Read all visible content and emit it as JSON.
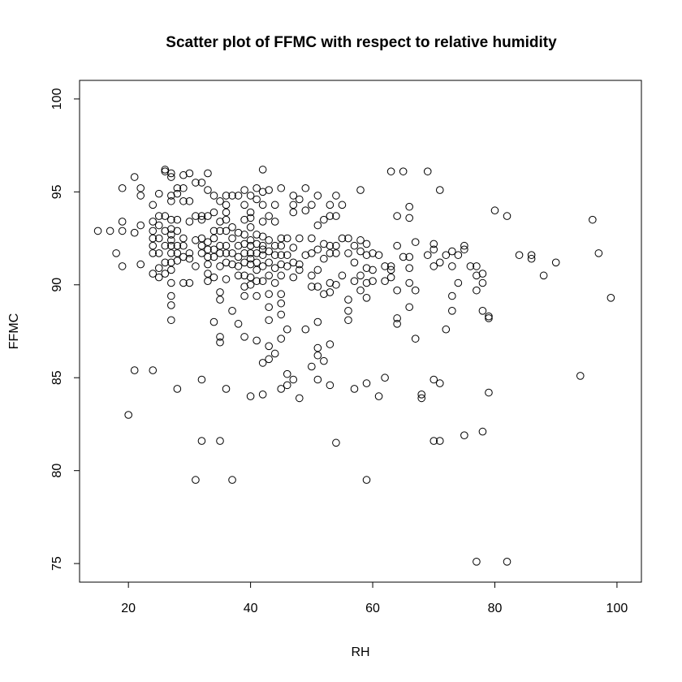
{
  "chart_data": {
    "type": "scatter",
    "title": "Scatter plot of FFMC with respect to relative humidity",
    "xlabel": "RH",
    "ylabel": "FFMC",
    "xlim": [
      12,
      104
    ],
    "ylim": [
      74,
      101
    ],
    "xticks": [
      20,
      40,
      60,
      80,
      100
    ],
    "yticks": [
      75,
      80,
      85,
      90,
      95,
      100
    ],
    "grid": false,
    "marker": "open-circle",
    "points": [
      [
        15,
        92.9
      ],
      [
        17,
        92.9
      ],
      [
        18,
        91.7
      ],
      [
        19,
        91.0
      ],
      [
        19,
        92.9
      ],
      [
        19,
        93.4
      ],
      [
        19,
        95.2
      ],
      [
        20,
        83.0
      ],
      [
        21,
        95.8
      ],
      [
        21,
        92.8
      ],
      [
        21,
        85.4
      ],
      [
        22,
        95.2
      ],
      [
        22,
        94.8
      ],
      [
        22,
        93.2
      ],
      [
        22,
        91.1
      ],
      [
        24,
        94.3
      ],
      [
        24,
        93.4
      ],
      [
        24,
        92.9
      ],
      [
        24,
        92.5
      ],
      [
        24,
        92.1
      ],
      [
        24,
        91.7
      ],
      [
        24,
        90.6
      ],
      [
        24,
        85.4
      ],
      [
        25,
        94.9
      ],
      [
        25,
        93.7
      ],
      [
        25,
        93.2
      ],
      [
        25,
        92.5
      ],
      [
        25,
        91.7
      ],
      [
        25,
        90.9
      ],
      [
        25,
        90.4
      ],
      [
        26,
        96.2
      ],
      [
        26,
        96.1
      ],
      [
        26,
        93.7
      ],
      [
        26,
        92.9
      ],
      [
        26,
        92.1
      ],
      [
        26,
        91.2
      ],
      [
        26,
        90.6
      ],
      [
        27,
        96.0
      ],
      [
        27,
        95.8
      ],
      [
        27,
        94.8
      ],
      [
        27,
        94.5
      ],
      [
        27,
        93.5
      ],
      [
        27,
        93.0
      ],
      [
        27,
        92.7
      ],
      [
        27,
        92.4
      ],
      [
        27,
        92.1
      ],
      [
        27,
        91.7
      ],
      [
        27,
        91.2
      ],
      [
        27,
        90.8
      ],
      [
        27,
        90.1
      ],
      [
        27,
        89.4
      ],
      [
        27,
        88.9
      ],
      [
        27,
        88.1
      ],
      [
        28,
        95.2
      ],
      [
        28,
        94.9
      ],
      [
        28,
        93.5
      ],
      [
        28,
        92.9
      ],
      [
        28,
        92.1
      ],
      [
        28,
        91.7
      ],
      [
        28,
        91.3
      ],
      [
        28,
        84.4
      ],
      [
        29,
        95.9
      ],
      [
        29,
        95.2
      ],
      [
        29,
        94.5
      ],
      [
        29,
        92.5
      ],
      [
        29,
        92.1
      ],
      [
        29,
        91.5
      ],
      [
        29,
        90.1
      ],
      [
        30,
        96.0
      ],
      [
        30,
        94.5
      ],
      [
        30,
        93.4
      ],
      [
        30,
        91.7
      ],
      [
        30,
        91.4
      ],
      [
        30,
        90.1
      ],
      [
        31,
        95.5
      ],
      [
        31,
        93.7
      ],
      [
        31,
        92.4
      ],
      [
        31,
        91.0
      ],
      [
        31,
        79.5
      ],
      [
        32,
        95.5
      ],
      [
        32,
        93.7
      ],
      [
        32,
        93.5
      ],
      [
        32,
        92.5
      ],
      [
        32,
        92.1
      ],
      [
        32,
        91.7
      ],
      [
        32,
        84.9
      ],
      [
        32,
        81.6
      ],
      [
        33,
        96.0
      ],
      [
        33,
        95.1
      ],
      [
        33,
        93.7
      ],
      [
        33,
        92.3
      ],
      [
        33,
        91.9
      ],
      [
        33,
        91.5
      ],
      [
        33,
        91.1
      ],
      [
        33,
        90.6
      ],
      [
        33,
        90.2
      ],
      [
        34,
        94.8
      ],
      [
        34,
        93.9
      ],
      [
        34,
        92.9
      ],
      [
        34,
        92.5
      ],
      [
        34,
        91.9
      ],
      [
        34,
        91.5
      ],
      [
        34,
        90.4
      ],
      [
        34,
        88.0
      ],
      [
        35,
        94.5
      ],
      [
        35,
        93.4
      ],
      [
        35,
        92.9
      ],
      [
        35,
        92.1
      ],
      [
        35,
        91.7
      ],
      [
        35,
        91.0
      ],
      [
        35,
        89.6
      ],
      [
        35,
        89.2
      ],
      [
        35,
        87.2
      ],
      [
        35,
        86.9
      ],
      [
        35,
        81.6
      ],
      [
        36,
        94.8
      ],
      [
        36,
        94.3
      ],
      [
        36,
        93.9
      ],
      [
        36,
        93.5
      ],
      [
        36,
        92.9
      ],
      [
        36,
        92.1
      ],
      [
        36,
        91.7
      ],
      [
        36,
        91.2
      ],
      [
        36,
        90.3
      ],
      [
        36,
        84.4
      ],
      [
        37,
        94.8
      ],
      [
        37,
        93.1
      ],
      [
        37,
        92.5
      ],
      [
        37,
        91.7
      ],
      [
        37,
        91.1
      ],
      [
        37,
        88.6
      ],
      [
        37,
        79.5
      ],
      [
        38,
        94.8
      ],
      [
        38,
        92.8
      ],
      [
        38,
        92.1
      ],
      [
        38,
        91.5
      ],
      [
        38,
        91.0
      ],
      [
        38,
        90.5
      ],
      [
        38,
        87.9
      ],
      [
        39,
        95.1
      ],
      [
        39,
        94.3
      ],
      [
        39,
        93.5
      ],
      [
        39,
        92.7
      ],
      [
        39,
        92.2
      ],
      [
        39,
        91.7
      ],
      [
        39,
        91.2
      ],
      [
        39,
        90.5
      ],
      [
        39,
        89.9
      ],
      [
        39,
        89.4
      ],
      [
        39,
        87.2
      ],
      [
        40,
        94.8
      ],
      [
        40,
        93.9
      ],
      [
        40,
        93.6
      ],
      [
        40,
        93.1
      ],
      [
        40,
        92.4
      ],
      [
        40,
        92.1
      ],
      [
        40,
        91.7
      ],
      [
        40,
        91.4
      ],
      [
        40,
        91.1
      ],
      [
        40,
        90.4
      ],
      [
        40,
        90.0
      ],
      [
        40,
        84.0
      ],
      [
        41,
        95.2
      ],
      [
        41,
        94.6
      ],
      [
        41,
        92.7
      ],
      [
        41,
        92.2
      ],
      [
        41,
        91.7
      ],
      [
        41,
        91.2
      ],
      [
        41,
        90.8
      ],
      [
        41,
        90.2
      ],
      [
        41,
        89.4
      ],
      [
        41,
        87.0
      ],
      [
        42,
        96.2
      ],
      [
        42,
        95.0
      ],
      [
        42,
        94.3
      ],
      [
        42,
        93.4
      ],
      [
        42,
        92.6
      ],
      [
        42,
        92.1
      ],
      [
        42,
        91.9
      ],
      [
        42,
        91.6
      ],
      [
        42,
        91.0
      ],
      [
        42,
        90.2
      ],
      [
        42,
        85.8
      ],
      [
        42,
        84.1
      ],
      [
        43,
        95.1
      ],
      [
        43,
        93.7
      ],
      [
        43,
        92.4
      ],
      [
        43,
        91.8
      ],
      [
        43,
        91.2
      ],
      [
        43,
        90.5
      ],
      [
        43,
        89.5
      ],
      [
        43,
        88.8
      ],
      [
        43,
        88.1
      ],
      [
        43,
        86.7
      ],
      [
        43,
        86.0
      ],
      [
        44,
        94.3
      ],
      [
        44,
        93.4
      ],
      [
        44,
        92.1
      ],
      [
        44,
        91.6
      ],
      [
        44,
        90.9
      ],
      [
        44,
        90.1
      ],
      [
        44,
        86.3
      ],
      [
        45,
        95.2
      ],
      [
        45,
        92.5
      ],
      [
        45,
        92.1
      ],
      [
        45,
        91.6
      ],
      [
        45,
        91.1
      ],
      [
        45,
        90.5
      ],
      [
        45,
        89.5
      ],
      [
        45,
        89.0
      ],
      [
        45,
        88.4
      ],
      [
        45,
        87.1
      ],
      [
        45,
        84.4
      ],
      [
        46,
        92.5
      ],
      [
        46,
        91.6
      ],
      [
        46,
        91.0
      ],
      [
        46,
        87.6
      ],
      [
        46,
        85.2
      ],
      [
        46,
        84.6
      ],
      [
        47,
        94.8
      ],
      [
        47,
        94.3
      ],
      [
        47,
        93.9
      ],
      [
        47,
        92.0
      ],
      [
        47,
        91.2
      ],
      [
        47,
        90.4
      ],
      [
        47,
        84.9
      ],
      [
        48,
        94.6
      ],
      [
        48,
        92.5
      ],
      [
        48,
        91.1
      ],
      [
        48,
        90.8
      ],
      [
        48,
        83.9
      ],
      [
        49,
        95.2
      ],
      [
        49,
        94.0
      ],
      [
        49,
        91.6
      ],
      [
        49,
        87.6
      ],
      [
        50,
        94.3
      ],
      [
        50,
        92.5
      ],
      [
        50,
        91.7
      ],
      [
        50,
        90.5
      ],
      [
        50,
        89.9
      ],
      [
        50,
        85.6
      ],
      [
        51,
        94.8
      ],
      [
        51,
        93.2
      ],
      [
        51,
        91.9
      ],
      [
        51,
        90.8
      ],
      [
        51,
        89.9
      ],
      [
        51,
        88.0
      ],
      [
        51,
        86.6
      ],
      [
        51,
        86.2
      ],
      [
        51,
        84.9
      ],
      [
        52,
        93.5
      ],
      [
        52,
        92.2
      ],
      [
        52,
        91.4
      ],
      [
        52,
        89.5
      ],
      [
        52,
        85.9
      ],
      [
        53,
        94.3
      ],
      [
        53,
        93.7
      ],
      [
        53,
        92.1
      ],
      [
        53,
        91.7
      ],
      [
        53,
        90.1
      ],
      [
        53,
        89.6
      ],
      [
        53,
        86.8
      ],
      [
        53,
        84.6
      ],
      [
        54,
        94.8
      ],
      [
        54,
        93.7
      ],
      [
        54,
        92.1
      ],
      [
        54,
        91.7
      ],
      [
        54,
        90.0
      ],
      [
        54,
        81.5
      ],
      [
        55,
        94.3
      ],
      [
        55,
        92.5
      ],
      [
        55,
        90.5
      ],
      [
        56,
        92.5
      ],
      [
        56,
        91.7
      ],
      [
        56,
        89.2
      ],
      [
        56,
        88.6
      ],
      [
        56,
        88.1
      ],
      [
        57,
        92.1
      ],
      [
        57,
        91.2
      ],
      [
        57,
        90.2
      ],
      [
        57,
        84.4
      ],
      [
        58,
        95.1
      ],
      [
        58,
        92.4
      ],
      [
        58,
        91.8
      ],
      [
        58,
        90.5
      ],
      [
        58,
        89.7
      ],
      [
        59,
        92.2
      ],
      [
        59,
        91.6
      ],
      [
        59,
        90.9
      ],
      [
        59,
        90.1
      ],
      [
        59,
        89.3
      ],
      [
        59,
        84.7
      ],
      [
        59,
        79.5
      ],
      [
        60,
        91.7
      ],
      [
        60,
        90.8
      ],
      [
        60,
        90.2
      ],
      [
        61,
        91.6
      ],
      [
        61,
        84.0
      ],
      [
        62,
        91.0
      ],
      [
        62,
        90.2
      ],
      [
        62,
        85.0
      ],
      [
        63,
        96.1
      ],
      [
        63,
        91.0
      ],
      [
        63,
        90.8
      ],
      [
        63,
        90.4
      ],
      [
        64,
        93.7
      ],
      [
        64,
        92.1
      ],
      [
        64,
        89.7
      ],
      [
        64,
        88.2
      ],
      [
        64,
        87.9
      ],
      [
        65,
        96.1
      ],
      [
        65,
        91.5
      ],
      [
        66,
        94.2
      ],
      [
        66,
        93.6
      ],
      [
        66,
        91.5
      ],
      [
        66,
        90.9
      ],
      [
        66,
        90.1
      ],
      [
        66,
        88.8
      ],
      [
        67,
        92.3
      ],
      [
        67,
        89.7
      ],
      [
        67,
        87.1
      ],
      [
        68,
        84.1
      ],
      [
        68,
        83.9
      ],
      [
        69,
        96.1
      ],
      [
        69,
        91.6
      ],
      [
        70,
        92.2
      ],
      [
        70,
        91.9
      ],
      [
        70,
        91.0
      ],
      [
        70,
        84.9
      ],
      [
        70,
        81.6
      ],
      [
        71,
        95.1
      ],
      [
        71,
        91.2
      ],
      [
        71,
        84.7
      ],
      [
        71,
        81.6
      ],
      [
        72,
        91.6
      ],
      [
        72,
        87.6
      ],
      [
        73,
        91.8
      ],
      [
        73,
        91.0
      ],
      [
        73,
        89.4
      ],
      [
        73,
        88.6
      ],
      [
        74,
        91.6
      ],
      [
        74,
        90.1
      ],
      [
        75,
        92.1
      ],
      [
        75,
        91.9
      ],
      [
        75,
        81.9
      ],
      [
        76,
        91.0
      ],
      [
        77,
        91.0
      ],
      [
        77,
        90.5
      ],
      [
        77,
        89.7
      ],
      [
        77,
        75.1
      ],
      [
        78,
        90.6
      ],
      [
        78,
        90.1
      ],
      [
        78,
        88.6
      ],
      [
        78,
        82.1
      ],
      [
        79,
        88.3
      ],
      [
        79,
        88.2
      ],
      [
        79,
        84.2
      ],
      [
        80,
        94.0
      ],
      [
        82,
        93.7
      ],
      [
        82,
        75.1
      ],
      [
        84,
        91.6
      ],
      [
        86,
        91.6
      ],
      [
        86,
        91.4
      ],
      [
        88,
        90.5
      ],
      [
        90,
        91.2
      ],
      [
        94,
        85.1
      ],
      [
        96,
        93.5
      ],
      [
        97,
        91.7
      ],
      [
        99,
        89.3
      ]
    ]
  }
}
